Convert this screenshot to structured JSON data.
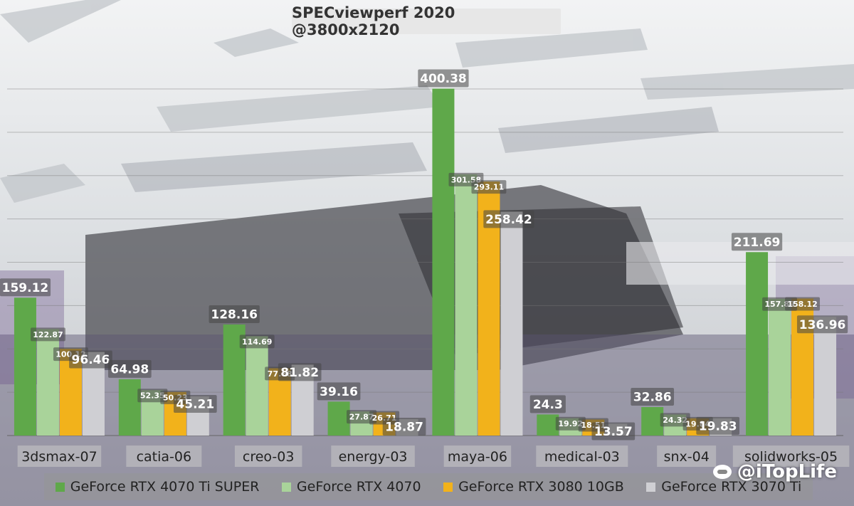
{
  "colors": {
    "series": [
      "#5fa84a",
      "#a9d39a",
      "#f2b21b",
      "#cfcfd3"
    ],
    "label_bg": "#555555"
  },
  "chart_data": {
    "type": "bar",
    "title": "SPECviewperf 2020 @3800x2120",
    "categories": [
      "3dsmax-07",
      "catia-06",
      "creo-03",
      "energy-03",
      "maya-06",
      "medical-03",
      "snx-04",
      "solidworks-05"
    ],
    "series": [
      {
        "name": "GeForce RTX 4070 Ti SUPER",
        "values": [
          159.12,
          64.98,
          128.16,
          39.16,
          400.38,
          24.3,
          32.86,
          211.69
        ]
      },
      {
        "name": "GeForce RTX 4070",
        "values": [
          122.87,
          52.35,
          114.69,
          27.87,
          301.58,
          19.92,
          24.32,
          157.89
        ]
      },
      {
        "name": "GeForce RTX 3080 10GB",
        "values": [
          100.12,
          50.23,
          77.68,
          26.71,
          293.11,
          18.51,
          19.84,
          158.12
        ]
      },
      {
        "name": "GeForce RTX 3070 Ti",
        "values": [
          96.46,
          45.21,
          81.82,
          18.87,
          258.42,
          13.57,
          19.83,
          136.96
        ]
      }
    ],
    "ylim": [
      0,
      400
    ],
    "xlabel": "",
    "ylabel": "",
    "grid": true,
    "legend_position": "bottom"
  },
  "watermark": {
    "text": "@iTopLife",
    "icon": "weibo-icon"
  }
}
